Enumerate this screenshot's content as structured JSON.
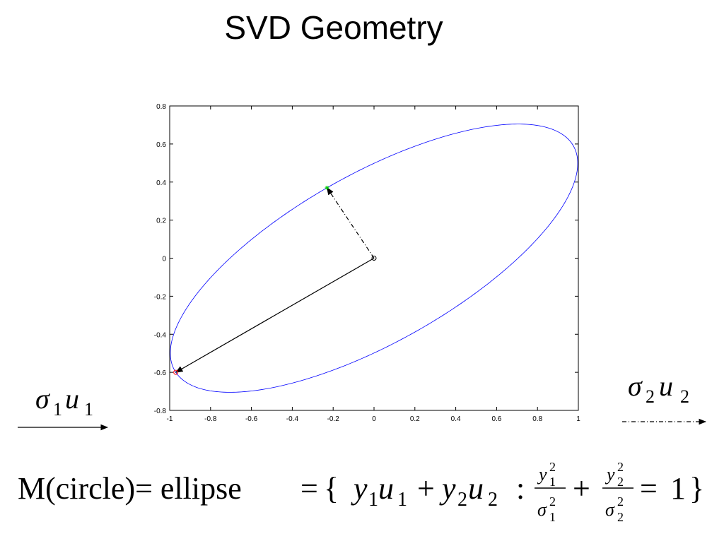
{
  "title": "SVD Geometry",
  "chart_data": {
    "type": "ellipse",
    "center": {
      "x": 0,
      "y": 0,
      "color": "#000000"
    },
    "vectors": [
      {
        "x": -0.97,
        "y": -0.6,
        "color": "#000000",
        "dash": "solid",
        "marker": "circle",
        "marker_color": "#ff0000"
      },
      {
        "x": -0.23,
        "y": 0.37,
        "color": "#000000",
        "dash": "dashdot",
        "marker": "star",
        "marker_color": "#00cc00"
      }
    ],
    "ellipse_color": "#0000ff",
    "xlim": [
      -1,
      1
    ],
    "ylim": [
      -0.8,
      0.8
    ],
    "xticks": [
      -1,
      -0.8,
      -0.6,
      -0.4,
      -0.2,
      0,
      0.2,
      0.4,
      0.6,
      0.8,
      1
    ],
    "yticks": [
      -0.8,
      -0.6,
      -0.4,
      -0.2,
      0,
      0.2,
      0.4,
      0.6,
      0.8
    ]
  },
  "vector_labels": [
    [
      "σ",
      "1",
      "u",
      "1"
    ],
    [
      "σ",
      "2",
      "u",
      "2"
    ]
  ],
  "formula": {
    "lhs": "M(circle)= ellipse",
    "eq": "=",
    "open": "{",
    "y": "y",
    "u": "u",
    "plus": "+",
    "colon": ":",
    "sigma": "σ",
    "sq": "2",
    "one": "1",
    "two": "2",
    "close": "}"
  }
}
